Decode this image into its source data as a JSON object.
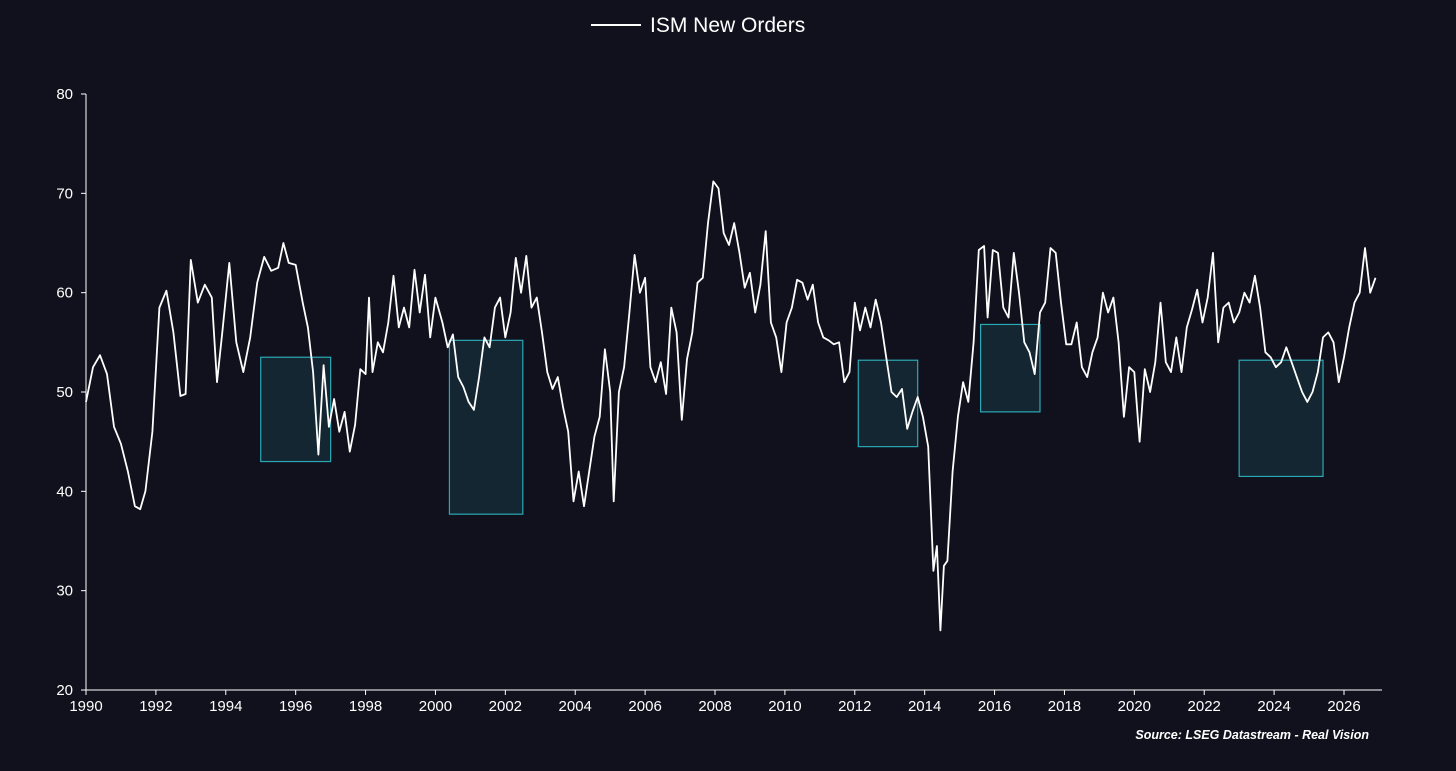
{
  "source": "Source: LSEG Datastream - Real Vision",
  "chart_data": {
    "type": "line",
    "title": "",
    "xlabel": "",
    "ylabel": "",
    "xlim": [
      1990,
      2027
    ],
    "ylim": [
      20,
      80
    ],
    "x_ticks": [
      "1990",
      "1992",
      "1994",
      "1996",
      "1998",
      "2000",
      "2002",
      "2004",
      "2006",
      "2008",
      "2010",
      "2012",
      "2014",
      "2016",
      "2018",
      "2020",
      "2022",
      "2024",
      "2026"
    ],
    "y_ticks": [
      "20",
      "30",
      "40",
      "50",
      "60",
      "70",
      "80"
    ],
    "grid": false,
    "legend": {
      "position": "top-center"
    },
    "series": [
      {
        "name": "ISM New Orders",
        "color": "#ffffff",
        "points": [
          [
            1990.0,
            49
          ],
          [
            1990.2,
            52.5
          ],
          [
            1990.4,
            53.7
          ],
          [
            1990.6,
            51.8
          ],
          [
            1990.8,
            46.5
          ],
          [
            1991.0,
            44.8
          ],
          [
            1991.2,
            42
          ],
          [
            1991.4,
            38.5
          ],
          [
            1991.55,
            38.2
          ],
          [
            1991.7,
            40
          ],
          [
            1991.9,
            46
          ],
          [
            1992.1,
            58.5
          ],
          [
            1992.3,
            60.2
          ],
          [
            1992.5,
            56
          ],
          [
            1992.7,
            49.6
          ],
          [
            1992.85,
            49.8
          ],
          [
            1993.0,
            63.3
          ],
          [
            1993.2,
            59
          ],
          [
            1993.4,
            60.8
          ],
          [
            1993.6,
            59.5
          ],
          [
            1993.75,
            51
          ],
          [
            1993.9,
            56
          ],
          [
            1994.1,
            63
          ],
          [
            1994.3,
            55
          ],
          [
            1994.5,
            52
          ],
          [
            1994.7,
            55.5
          ],
          [
            1994.9,
            61
          ],
          [
            1995.1,
            63.6
          ],
          [
            1995.3,
            62.2
          ],
          [
            1995.5,
            62.5
          ],
          [
            1995.65,
            65
          ],
          [
            1995.8,
            63
          ],
          [
            1996.0,
            62.8
          ],
          [
            1996.2,
            59
          ],
          [
            1996.35,
            56.5
          ],
          [
            1996.5,
            52
          ],
          [
            1996.65,
            43.7
          ],
          [
            1996.8,
            52.7
          ],
          [
            1996.95,
            46.5
          ],
          [
            1997.1,
            49.3
          ],
          [
            1997.25,
            46
          ],
          [
            1997.4,
            48
          ],
          [
            1997.55,
            44
          ],
          [
            1997.7,
            46.7
          ],
          [
            1997.85,
            52.3
          ],
          [
            1998.0,
            51.8
          ],
          [
            1998.1,
            59.5
          ],
          [
            1998.2,
            52
          ],
          [
            1998.35,
            55
          ],
          [
            1998.5,
            54
          ],
          [
            1998.65,
            57
          ],
          [
            1998.8,
            61.7
          ],
          [
            1998.95,
            56.5
          ],
          [
            1999.1,
            58.5
          ],
          [
            1999.25,
            56.5
          ],
          [
            1999.4,
            62.3
          ],
          [
            1999.55,
            58
          ],
          [
            1999.7,
            61.8
          ],
          [
            1999.85,
            55.5
          ],
          [
            2000.0,
            59.5
          ],
          [
            2000.2,
            57
          ],
          [
            2000.35,
            54.5
          ],
          [
            2000.5,
            55.8
          ],
          [
            2000.65,
            51.5
          ],
          [
            2000.8,
            50.5
          ],
          [
            2000.95,
            49
          ],
          [
            2001.1,
            48.2
          ],
          [
            2001.25,
            51.5
          ],
          [
            2001.4,
            55.5
          ],
          [
            2001.55,
            54.5
          ],
          [
            2001.7,
            58.5
          ],
          [
            2001.85,
            59.5
          ],
          [
            2002.0,
            55.5
          ],
          [
            2002.15,
            58
          ],
          [
            2002.3,
            63.5
          ],
          [
            2002.45,
            60
          ],
          [
            2002.6,
            63.7
          ],
          [
            2002.75,
            58.5
          ],
          [
            2002.9,
            59.5
          ],
          [
            2003.05,
            56
          ],
          [
            2003.2,
            52
          ],
          [
            2003.35,
            50.3
          ],
          [
            2003.5,
            51.5
          ],
          [
            2003.65,
            48.5
          ],
          [
            2003.8,
            46
          ],
          [
            2003.95,
            39
          ],
          [
            2004.1,
            42
          ],
          [
            2004.25,
            38.5
          ],
          [
            2004.4,
            42
          ],
          [
            2004.55,
            45.5
          ],
          [
            2004.7,
            47.5
          ],
          [
            2004.85,
            54.3
          ],
          [
            2005.0,
            50
          ],
          [
            2005.1,
            39
          ],
          [
            2005.25,
            50
          ],
          [
            2005.4,
            52.5
          ],
          [
            2005.55,
            58
          ],
          [
            2005.7,
            63.8
          ],
          [
            2005.85,
            60
          ],
          [
            2006.0,
            61.5
          ],
          [
            2006.15,
            52.5
          ],
          [
            2006.3,
            51
          ],
          [
            2006.45,
            53
          ],
          [
            2006.6,
            49.8
          ],
          [
            2006.75,
            58.5
          ],
          [
            2006.9,
            56
          ],
          [
            2007.05,
            47.2
          ],
          [
            2007.2,
            53.3
          ],
          [
            2007.35,
            56
          ],
          [
            2007.5,
            61
          ],
          [
            2007.65,
            61.5
          ],
          [
            2007.8,
            67
          ],
          [
            2007.95,
            71.2
          ],
          [
            2008.1,
            70.5
          ],
          [
            2008.25,
            66
          ],
          [
            2008.4,
            64.8
          ],
          [
            2008.55,
            67
          ],
          [
            2008.7,
            64
          ],
          [
            2008.85,
            60.5
          ],
          [
            2009.0,
            62
          ],
          [
            2009.15,
            58
          ],
          [
            2009.3,
            60.8
          ],
          [
            2009.45,
            66.2
          ],
          [
            2009.6,
            57
          ],
          [
            2009.75,
            55.5
          ],
          [
            2009.9,
            52
          ],
          [
            2010.05,
            57
          ],
          [
            2010.2,
            58.5
          ],
          [
            2010.35,
            61.3
          ],
          [
            2010.5,
            61
          ],
          [
            2010.65,
            59.3
          ],
          [
            2010.8,
            60.8
          ],
          [
            2010.95,
            57
          ],
          [
            2011.1,
            55.5
          ],
          [
            2011.25,
            55.2
          ],
          [
            2011.4,
            54.8
          ],
          [
            2011.55,
            55
          ],
          [
            2011.7,
            51
          ],
          [
            2011.85,
            52
          ],
          [
            2012.0,
            59
          ],
          [
            2012.15,
            56.2
          ],
          [
            2012.3,
            58.5
          ],
          [
            2012.45,
            56.5
          ],
          [
            2012.6,
            59.3
          ],
          [
            2012.75,
            57
          ],
          [
            2012.9,
            53.5
          ],
          [
            2013.05,
            50
          ],
          [
            2013.2,
            49.5
          ],
          [
            2013.35,
            50.3
          ],
          [
            2013.5,
            46.3
          ],
          [
            2013.65,
            48
          ],
          [
            2013.8,
            49.5
          ],
          [
            2013.95,
            47.5
          ],
          [
            2014.1,
            44.5
          ],
          [
            2014.25,
            32
          ],
          [
            2014.35,
            34.5
          ],
          [
            2014.45,
            26
          ],
          [
            2014.55,
            32.5
          ],
          [
            2014.65,
            33
          ],
          [
            2014.8,
            42
          ],
          [
            2014.95,
            47.5
          ],
          [
            2015.1,
            51
          ],
          [
            2015.25,
            49
          ],
          [
            2015.4,
            55
          ],
          [
            2015.55,
            64.3
          ],
          [
            2015.7,
            64.7
          ],
          [
            2015.8,
            57.5
          ],
          [
            2015.95,
            64.3
          ],
          [
            2016.1,
            64
          ],
          [
            2016.25,
            58.5
          ],
          [
            2016.4,
            57.5
          ],
          [
            2016.55,
            64
          ],
          [
            2016.7,
            60
          ],
          [
            2016.85,
            55
          ],
          [
            2017.0,
            54
          ],
          [
            2017.15,
            51.8
          ],
          [
            2017.3,
            58
          ],
          [
            2017.45,
            59
          ],
          [
            2017.6,
            64.5
          ],
          [
            2017.75,
            64
          ],
          [
            2017.9,
            59
          ],
          [
            2018.05,
            54.8
          ],
          [
            2018.2,
            54.8
          ],
          [
            2018.35,
            57
          ],
          [
            2018.5,
            52.5
          ],
          [
            2018.65,
            51.5
          ],
          [
            2018.8,
            54
          ],
          [
            2018.95,
            55.5
          ],
          [
            2019.1,
            60
          ],
          [
            2019.25,
            58
          ],
          [
            2019.4,
            59.5
          ],
          [
            2019.55,
            55
          ],
          [
            2019.7,
            47.5
          ],
          [
            2019.85,
            52.5
          ],
          [
            2020.0,
            52
          ],
          [
            2020.15,
            45
          ],
          [
            2020.3,
            52.3
          ],
          [
            2020.45,
            50
          ],
          [
            2020.6,
            53
          ],
          [
            2020.75,
            59
          ],
          [
            2020.9,
            53
          ],
          [
            2021.05,
            52
          ],
          [
            2021.2,
            55.5
          ],
          [
            2021.35,
            52
          ],
          [
            2021.5,
            56.5
          ],
          [
            2021.65,
            58.3
          ],
          [
            2021.8,
            60.3
          ],
          [
            2021.95,
            57
          ],
          [
            2022.1,
            59.5
          ],
          [
            2022.25,
            64
          ],
          [
            2022.4,
            55
          ],
          [
            2022.55,
            58.5
          ],
          [
            2022.7,
            59
          ],
          [
            2022.85,
            57
          ],
          [
            2023.0,
            58
          ],
          [
            2023.15,
            60
          ],
          [
            2023.3,
            59
          ],
          [
            2023.45,
            61.7
          ],
          [
            2023.6,
            58.5
          ],
          [
            2023.75,
            54
          ],
          [
            2023.9,
            53.5
          ],
          [
            2024.05,
            52.5
          ],
          [
            2024.2,
            53
          ],
          [
            2024.35,
            54.5
          ],
          [
            2024.5,
            53
          ],
          [
            2024.65,
            51.5
          ],
          [
            2024.8,
            50
          ],
          [
            2024.95,
            49
          ],
          [
            2025.1,
            50
          ],
          [
            2025.25,
            52
          ],
          [
            2025.4,
            55.5
          ],
          [
            2025.55,
            56
          ],
          [
            2025.7,
            55
          ],
          [
            2025.85,
            51
          ],
          [
            2026.0,
            53.5
          ],
          [
            2026.15,
            56.5
          ],
          [
            2026.3,
            59
          ],
          [
            2026.45,
            60
          ],
          [
            2026.6,
            64.5
          ],
          [
            2026.75,
            60
          ],
          [
            2026.9,
            61.5
          ]
        ]
      }
    ],
    "highlight_boxes": [
      {
        "x0": 1995.0,
        "x1": 1997.0,
        "y0": 43,
        "y1": 53.5
      },
      {
        "x0": 2000.4,
        "x1": 2002.5,
        "y0": 37.7,
        "y1": 55.2
      },
      {
        "x0": 2012.1,
        "x1": 2013.8,
        "y0": 44.5,
        "y1": 53.2
      },
      {
        "x0": 2015.6,
        "x1": 2017.3,
        "y0": 48,
        "y1": 56.8
      },
      {
        "x0": 2023.0,
        "x1": 2025.4,
        "y0": 41.5,
        "y1": 53.2
      }
    ],
    "highlight_color": "#2aa8b4"
  }
}
